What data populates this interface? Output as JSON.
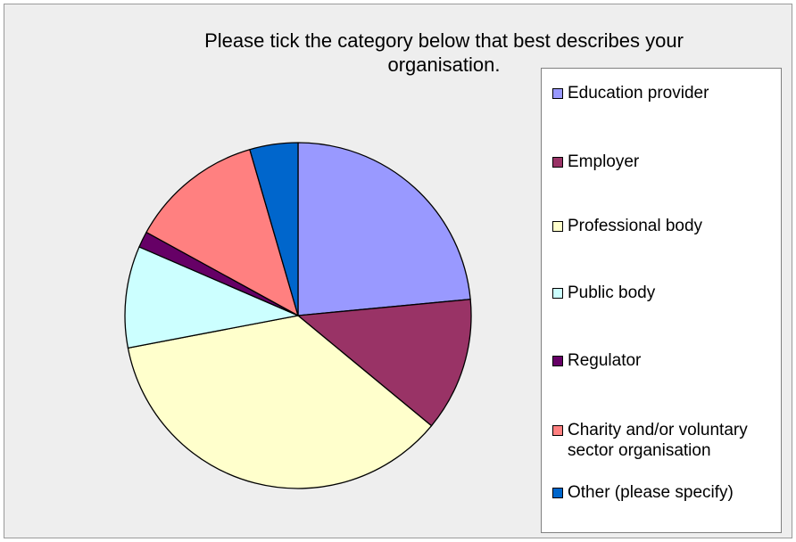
{
  "chart_data": {
    "type": "pie",
    "title": "Please tick the category below that best describes your organisation.",
    "categories": [
      "Education provider",
      "Employer",
      "Professional body",
      "Public body",
      "Regulator",
      "Charity and/or voluntary sector organisation",
      "Other (please specify)"
    ],
    "values": [
      23.5,
      12.5,
      36.0,
      9.5,
      1.5,
      12.5,
      4.5
    ],
    "colors": [
      "#9999ff",
      "#993366",
      "#ffffcc",
      "#ccffff",
      "#660066",
      "#ff8080",
      "#0066cc"
    ],
    "legend_position": "right",
    "start_angle_deg": 0,
    "direction": "clockwise"
  }
}
